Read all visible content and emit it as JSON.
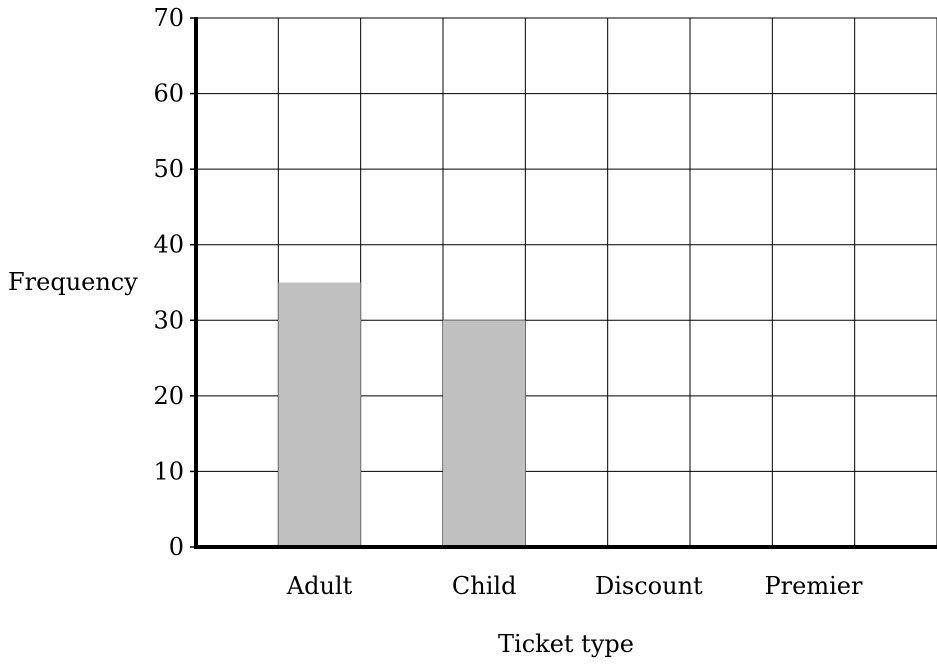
{
  "chart_data": {
    "type": "bar",
    "title": "",
    "xlabel": "Ticket type",
    "ylabel": "Frequency",
    "categories": [
      "Adult",
      "Child",
      "Discount",
      "Premier"
    ],
    "values": [
      35,
      30,
      null,
      null
    ],
    "ylim": [
      0,
      70
    ],
    "yticks": [
      0,
      10,
      20,
      30,
      40,
      50,
      60,
      70
    ],
    "grid": true,
    "bar_color": "#c0c0c0",
    "grid_color": "#000000"
  }
}
